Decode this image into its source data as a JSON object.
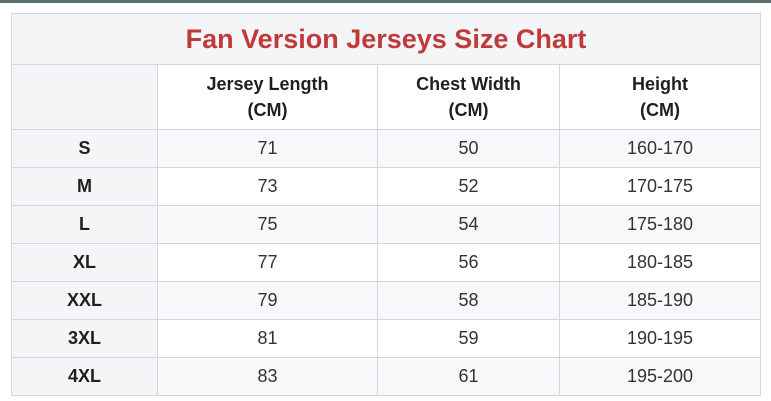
{
  "title": "Fan Version Jerseys Size Chart",
  "columns": [
    {
      "line1": "Jersey Length",
      "line2": "(CM)"
    },
    {
      "line1": "Chest Width",
      "line2": "(CM)"
    },
    {
      "line1": "Height",
      "line2": "(CM)"
    }
  ],
  "rows": [
    {
      "size": "S",
      "length": "71",
      "chest": "50",
      "height": "160-170"
    },
    {
      "size": "M",
      "length": "73",
      "chest": "52",
      "height": "170-175"
    },
    {
      "size": "L",
      "length": "75",
      "chest": "54",
      "height": "175-180"
    },
    {
      "size": "XL",
      "length": "77",
      "chest": "56",
      "height": "180-185"
    },
    {
      "size": "XXL",
      "length": "79",
      "chest": "58",
      "height": "185-190"
    },
    {
      "size": "3XL",
      "length": "81",
      "chest": "59",
      "height": "190-195"
    },
    {
      "size": "4XL",
      "length": "83",
      "chest": "61",
      "height": "195-200"
    }
  ],
  "colors": {
    "title": "#c0393b",
    "border": "#d3d6da",
    "shaded": "#f4f5f6"
  }
}
